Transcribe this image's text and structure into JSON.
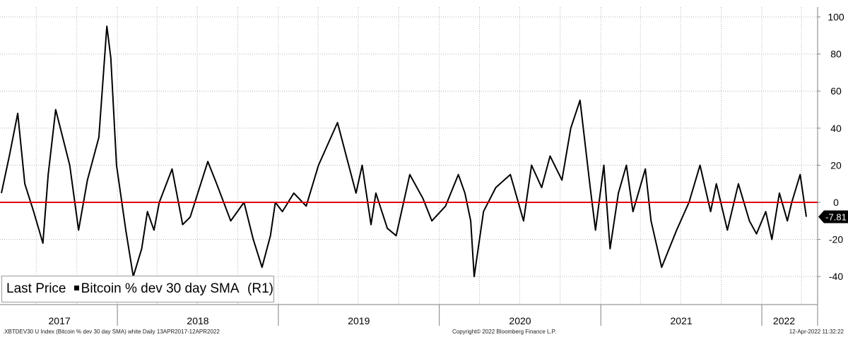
{
  "chart_data": {
    "type": "line",
    "title": "",
    "xlabel": "",
    "ylabel": "",
    "ylim": [
      -45,
      100
    ],
    "y_ticks": [
      100,
      80,
      60,
      40,
      20,
      0,
      -20,
      -40
    ],
    "y_tick_labels": [
      "100",
      "80",
      "60",
      "40",
      "20",
      "0",
      "-20",
      "-40"
    ],
    "y_axis_side": "right",
    "grid": true,
    "x_range": [
      "2017-04-13",
      "2022-04-12"
    ],
    "x_year_labels": [
      "2017",
      "2018",
      "2019",
      "2020",
      "2021",
      "2022"
    ],
    "series": [
      {
        "name": "Bitcoin % dev 30 day SMA",
        "color": "#000000",
        "x": [
          "2017-04-13",
          "2017-05-01",
          "2017-05-20",
          "2017-06-05",
          "2017-06-25",
          "2017-07-16",
          "2017-07-28",
          "2017-08-14",
          "2017-09-15",
          "2017-10-05",
          "2017-10-25",
          "2017-11-20",
          "2017-12-08",
          "2017-12-17",
          "2017-12-30",
          "2018-01-20",
          "2018-02-06",
          "2018-02-25",
          "2018-03-10",
          "2018-03-25",
          "2018-04-06",
          "2018-05-05",
          "2018-05-29",
          "2018-06-15",
          "2018-07-25",
          "2018-08-14",
          "2018-09-15",
          "2018-10-15",
          "2018-11-05",
          "2018-11-25",
          "2018-12-14",
          "2018-12-25",
          "2019-01-10",
          "2019-02-05",
          "2019-03-05",
          "2019-04-02",
          "2019-05-15",
          "2019-06-26",
          "2019-07-10",
          "2019-07-30",
          "2019-08-10",
          "2019-09-05",
          "2019-09-25",
          "2019-10-26",
          "2019-11-25",
          "2019-12-15",
          "2020-01-15",
          "2020-02-13",
          "2020-02-28",
          "2020-03-12",
          "2020-03-20",
          "2020-04-10",
          "2020-05-08",
          "2020-06-10",
          "2020-07-10",
          "2020-07-28",
          "2020-08-20",
          "2020-09-08",
          "2020-10-05",
          "2020-10-25",
          "2020-11-15",
          "2020-12-08",
          "2020-12-20",
          "2021-01-08",
          "2021-01-22",
          "2021-02-10",
          "2021-02-28",
          "2021-03-15",
          "2021-04-12",
          "2021-04-25",
          "2021-05-19",
          "2021-06-22",
          "2021-07-20",
          "2021-08-14",
          "2021-09-07",
          "2021-09-20",
          "2021-10-15",
          "2021-11-09",
          "2021-12-04",
          "2021-12-20",
          "2022-01-10",
          "2022-01-24",
          "2022-02-10",
          "2022-02-28",
          "2022-03-10",
          "2022-03-29",
          "2022-04-12"
        ],
        "values": [
          5,
          25,
          48,
          10,
          -5,
          -22,
          15,
          50,
          20,
          -15,
          12,
          35,
          95,
          78,
          20,
          -15,
          -40,
          -25,
          -5,
          -15,
          0,
          18,
          -12,
          -8,
          22,
          10,
          -10,
          0,
          -20,
          -35,
          -18,
          0,
          -5,
          5,
          -2,
          20,
          43,
          5,
          20,
          -12,
          5,
          -14,
          -18,
          15,
          2,
          -10,
          -2,
          15,
          5,
          -10,
          -40,
          -5,
          8,
          15,
          -10,
          20,
          8,
          25,
          12,
          40,
          55,
          8,
          -15,
          20,
          -25,
          5,
          20,
          -5,
          18,
          -10,
          -35,
          -15,
          0,
          20,
          -5,
          10,
          -15,
          10,
          -10,
          -17,
          -5,
          -20,
          5,
          -10,
          0,
          15,
          -7.81
        ]
      }
    ],
    "reference_lines": [
      {
        "value": 0,
        "color": "#e00000"
      }
    ],
    "last_value": {
      "value": -7.81,
      "label": "-7.81"
    }
  },
  "legend": {
    "field_label": "Last Price",
    "series_label": "Bitcoin % dev 30 day SMA",
    "axis_tag": "(R1)"
  },
  "footer": {
    "left": ".XBTDEV30 U Index (Bitcoin % dev 30 day SMA) white  Daily 13APR2017-12APR2022",
    "center": "Copyright© 2022 Bloomberg Finance L.P.",
    "right": "12-Apr-2022 11:32:22"
  }
}
